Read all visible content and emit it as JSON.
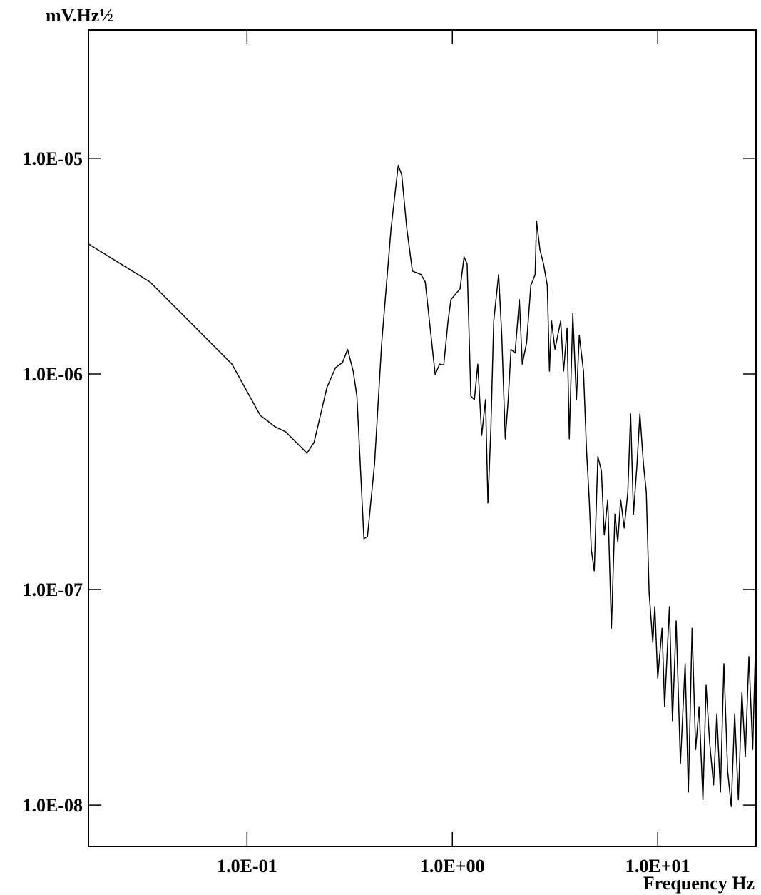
{
  "chart_data": {
    "type": "line",
    "y_label": "mV.Hz½",
    "x_label": "Frequency Hz",
    "log_x": true,
    "log_y": true,
    "color": "#000000",
    "xlim": [
      0.0169,
      30.1
    ],
    "ylim": [
      6.43e-09,
      3.94e-05
    ],
    "xticks": [
      {
        "value": 0.1,
        "label": "1.0E-01"
      },
      {
        "value": 1,
        "label": "1.0E+00"
      },
      {
        "value": 10,
        "label": "1.0E+01"
      }
    ],
    "yticks": [
      {
        "value": 1e-08,
        "label": "1.0E-08"
      },
      {
        "value": 1e-07,
        "label": "1.0E-07"
      },
      {
        "value": 1e-06,
        "label": "1.0E-06"
      },
      {
        "value": 1e-05,
        "label": "1.0E-05"
      }
    ],
    "x": [
      0.0169,
      0.0337,
      0.0845,
      0.116,
      0.137,
      0.154,
      0.167,
      0.196,
      0.212,
      0.245,
      0.27,
      0.292,
      0.309,
      0.329,
      0.343,
      0.371,
      0.386,
      0.418,
      0.453,
      0.503,
      0.545,
      0.567,
      0.6,
      0.639,
      0.704,
      0.738,
      0.78,
      0.825,
      0.866,
      0.908,
      0.953,
      0.984,
      1.05,
      1.09,
      1.14,
      1.18,
      1.23,
      1.28,
      1.33,
      1.39,
      1.45,
      1.49,
      1.54,
      1.59,
      1.68,
      1.74,
      1.81,
      1.87,
      1.93,
      2.02,
      2.12,
      2.19,
      2.3,
      2.41,
      2.53,
      2.57,
      2.67,
      2.78,
      2.9,
      2.97,
      3.04,
      3.16,
      3.26,
      3.37,
      3.48,
      3.62,
      3.71,
      3.86,
      4.02,
      4.15,
      4.35,
      4.5,
      4.64,
      4.75,
      4.91,
      5.11,
      5.32,
      5.49,
      5.71,
      5.95,
      6.19,
      6.39,
      6.6,
      6.87,
      7.15,
      7.38,
      7.62,
      7.93,
      8.19,
      8.52,
      8.8,
      9.08,
      9.46,
      9.68,
      10.0,
      10.5,
      10.8,
      11.4,
      11.8,
      12.3,
      12.9,
      13.6,
      14.1,
      14.7,
      15.3,
      15.9,
      16.6,
      17.2,
      17.9,
      18.7,
      19.4,
      20.2,
      21.0,
      21.9,
      22.8,
      23.7,
      24.7,
      25.7,
      26.7,
      27.8,
      29.0,
      30.1
    ],
    "values": [
      4.01e-06,
      2.67e-06,
      1.11e-06,
      6.43e-07,
      5.69e-07,
      5.4e-07,
      5e-07,
      4.29e-07,
      4.81e-07,
      8.65e-07,
      1.07e-06,
      1.13e-06,
      1.3e-06,
      1.03e-06,
      7.89e-07,
      1.72e-07,
      1.76e-07,
      3.83e-07,
      1.4e-06,
      4.73e-06,
      9.27e-06,
      8.39e-06,
      4.73e-06,
      3e-06,
      2.89e-06,
      2.67e-06,
      1.63e-06,
      9.92e-07,
      1.11e-06,
      1.1e-06,
      1.76e-06,
      2.21e-06,
      2.38e-06,
      2.48e-06,
      3.49e-06,
      3.24e-06,
      7.89e-07,
      7.6e-07,
      1.11e-06,
      5.19e-07,
      7.6e-07,
      2.52e-07,
      5.6e-07,
      1.76e-06,
      2.89e-06,
      1.51e-06,
      5e-07,
      7.6e-07,
      1.3e-06,
      1.25e-06,
      2.21e-06,
      1.11e-06,
      1.4e-06,
      2.57e-06,
      2.89e-06,
      5.12e-06,
      3.77e-06,
      3.24e-06,
      2.57e-06,
      1.03e-06,
      1.76e-06,
      1.3e-06,
      1.51e-06,
      1.76e-06,
      1.03e-06,
      1.63e-06,
      5e-07,
      1.9e-06,
      7.6e-07,
      1.51e-06,
      1.03e-06,
      4.45e-07,
      2.61e-07,
      1.53e-07,
      1.22e-07,
      4.13e-07,
      3.55e-07,
      1.79e-07,
      2.61e-07,
      6.62e-08,
      2.24e-07,
      1.66e-07,
      2.61e-07,
      1.93e-07,
      2.82e-07,
      6.53e-07,
      2.24e-07,
      3.83e-07,
      6.53e-07,
      3.83e-07,
      2.82e-07,
      9.7e-08,
      5.69e-08,
      8.33e-08,
      3.88e-08,
      6.62e-08,
      2.86e-08,
      8.33e-08,
      2.46e-08,
      7.15e-08,
      1.56e-08,
      4.53e-08,
      1.15e-08,
      6.62e-08,
      1.81e-08,
      2.86e-08,
      1.06e-08,
      3.6e-08,
      1.95e-08,
      1.24e-08,
      2.65e-08,
      1.15e-08,
      4.53e-08,
      1.44e-08,
      9.84e-09,
      2.65e-08,
      1.06e-08,
      3.33e-08,
      1.68e-08,
      4.89e-08,
      1.81e-08,
      6.62e-08
    ]
  }
}
